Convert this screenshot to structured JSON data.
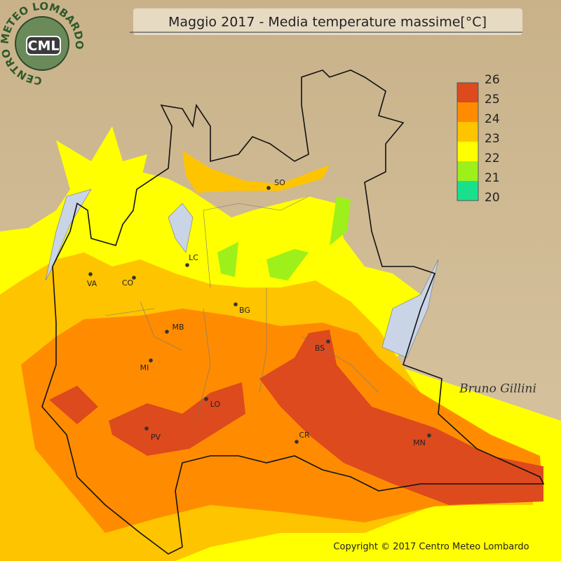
{
  "header": {
    "title": "Maggio 2017 - Media temperature massime[°C]"
  },
  "logo": {
    "ring_text": "CENTRO METEO LOMBARDO",
    "badge": "CML"
  },
  "legend": {
    "ticks": [
      26,
      25,
      24,
      23,
      22,
      21,
      20
    ],
    "colors": [
      "#dc4a1e",
      "#ff8c00",
      "#ffc400",
      "#ffff00",
      "#9ef01a",
      "#19e08c"
    ]
  },
  "cities": [
    "SO",
    "VA",
    "CO",
    "LC",
    "BG",
    "MB",
    "MI",
    "BS",
    "LO",
    "PV",
    "CR",
    "MN"
  ],
  "signature": "Bruno Gillini",
  "copyright": "Copyright © 2017 Centro Meteo Lombardo"
}
